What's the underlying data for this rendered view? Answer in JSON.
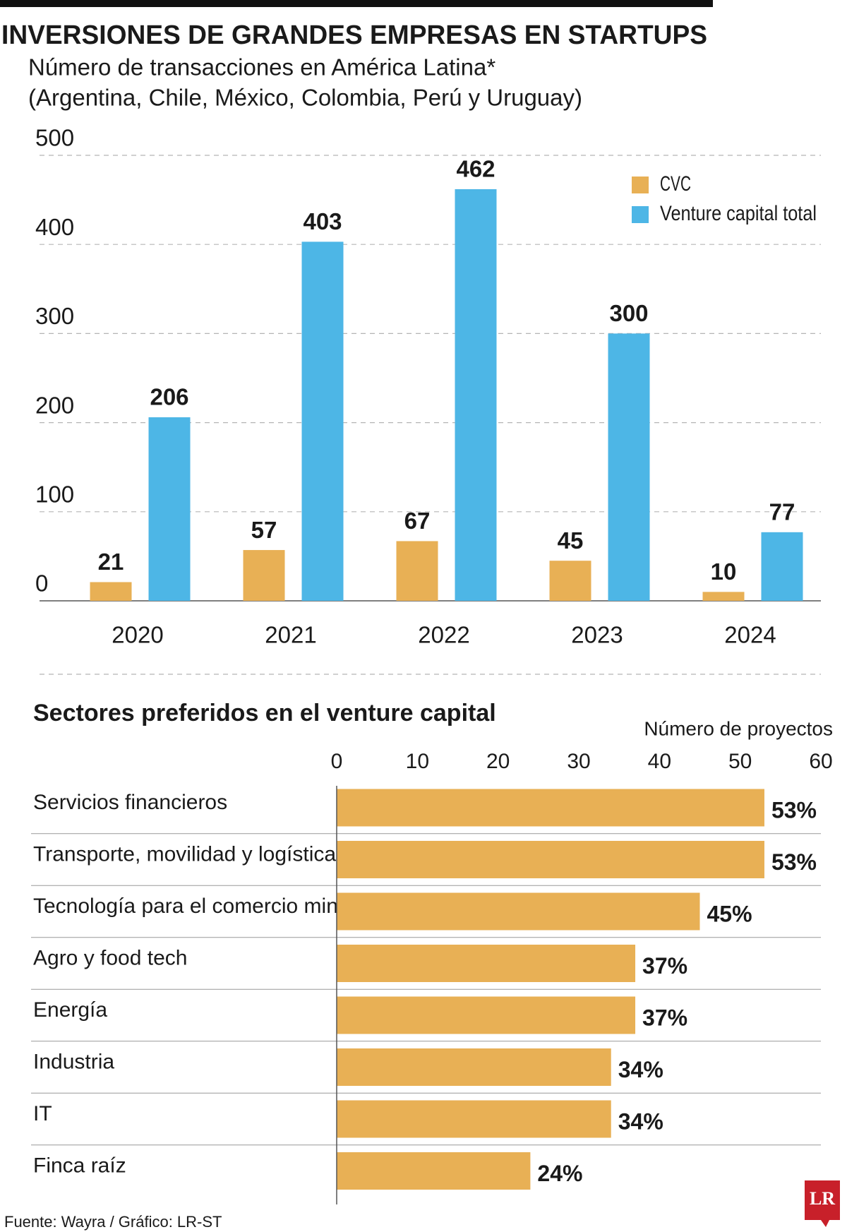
{
  "header": {
    "title": "INVERSIONES DE GRANDES EMPRESAS EN STARTUPS",
    "subtitle": [
      "Número de transacciones en América Latina*",
      "(Argentina, Chile, México, Colombia, Perú y Uruguay)"
    ]
  },
  "chart_data": [
    {
      "type": "bar",
      "categories": [
        "2020",
        "2021",
        "2022",
        "2023",
        "2024"
      ],
      "series": [
        {
          "name": "CVC",
          "color": "#e8b055",
          "values": [
            21,
            57,
            67,
            45,
            10
          ]
        },
        {
          "name": "Venture capital total",
          "color": "#4db6e6",
          "values": [
            206,
            403,
            462,
            300,
            77
          ]
        }
      ],
      "ylim": [
        0,
        500
      ],
      "yticks": [
        0,
        100,
        200,
        300,
        400,
        500
      ],
      "grid": true,
      "legend": "top-right"
    },
    {
      "type": "hbar",
      "title": "Sectores preferidos en el venture capital",
      "x_label": "Número de proyectos",
      "categories": [
        "Servicios financieros",
        "Transporte, movilidad y logística",
        "Tecnología para el comercio minorista",
        "Agro y food tech",
        "Energía",
        "Industria",
        "IT",
        "Finca raíz"
      ],
      "values": [
        53,
        53,
        45,
        37,
        37,
        34,
        34,
        24
      ],
      "value_labels": [
        "53%",
        "53%",
        "45%",
        "37%",
        "37%",
        "34%",
        "34%",
        "24%"
      ],
      "color": "#e8b055",
      "xlim": [
        0,
        60
      ],
      "xticks": [
        0,
        10,
        20,
        30,
        40,
        50,
        60
      ]
    }
  ],
  "footer": {
    "source": "Fuente: Wayra / Gráfico: LR-ST",
    "logo": "LR"
  }
}
